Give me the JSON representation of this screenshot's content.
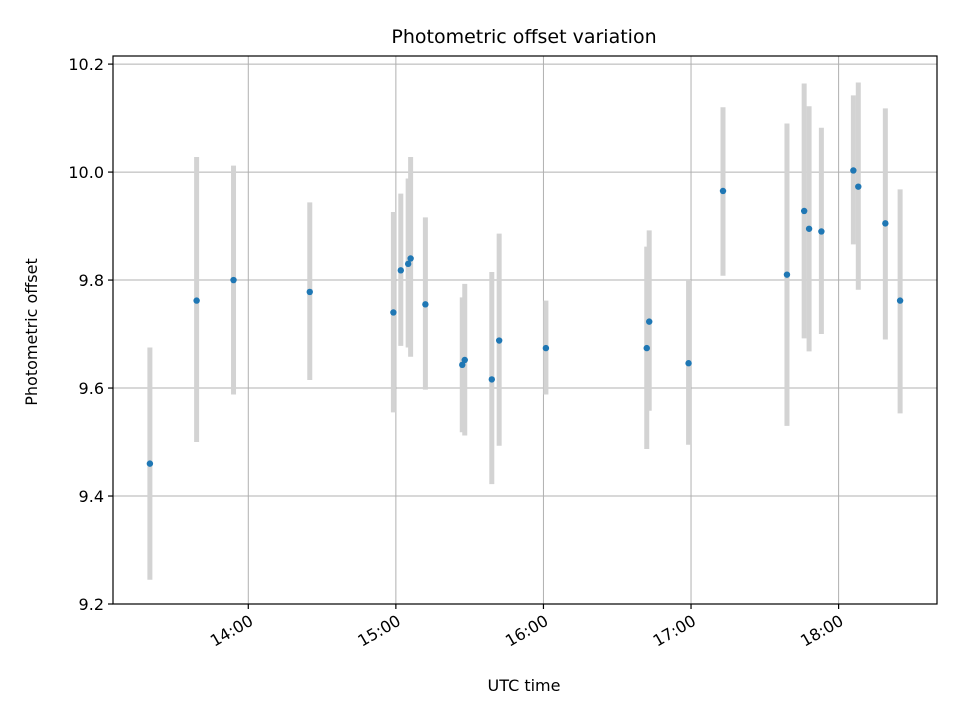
{
  "chart_data": {
    "type": "scatter",
    "title": "Photometric offset variation",
    "xlabel": "UTC time",
    "ylabel": "Photometric offset",
    "xlim": [
      "13:05",
      "18:40"
    ],
    "ylim": [
      9.2,
      10.215
    ],
    "x_ticks": [
      "14:00",
      "15:00",
      "16:00",
      "17:00",
      "18:00"
    ],
    "y_ticks": [
      9.2,
      9.4,
      9.6,
      9.8,
      10.0,
      10.2
    ],
    "grid": true,
    "colors": {
      "point": "#1f77b4",
      "errorbar": "#d3d3d3",
      "grid": "#b0b0b0"
    },
    "points": [
      {
        "x": "13:20",
        "y": 9.46,
        "lo": 9.245,
        "hi": 9.675
      },
      {
        "x": "13:39",
        "y": 9.762,
        "lo": 9.5,
        "hi": 10.028
      },
      {
        "x": "13:54",
        "y": 9.8,
        "lo": 9.588,
        "hi": 10.012
      },
      {
        "x": "14:25",
        "y": 9.778,
        "lo": 9.615,
        "hi": 9.944
      },
      {
        "x": "14:59",
        "y": 9.74,
        "lo": 9.555,
        "hi": 9.926
      },
      {
        "x": "15:02",
        "y": 9.818,
        "lo": 9.678,
        "hi": 9.96
      },
      {
        "x": "15:05",
        "y": 9.83,
        "lo": 9.675,
        "hi": 9.988
      },
      {
        "x": "15:06",
        "y": 9.84,
        "lo": 9.658,
        "hi": 10.028
      },
      {
        "x": "15:12",
        "y": 9.755,
        "lo": 9.597,
        "hi": 9.916
      },
      {
        "x": "15:27",
        "y": 9.643,
        "lo": 9.518,
        "hi": 9.768
      },
      {
        "x": "15:28",
        "y": 9.652,
        "lo": 9.512,
        "hi": 9.793
      },
      {
        "x": "15:39",
        "y": 9.616,
        "lo": 9.422,
        "hi": 9.815
      },
      {
        "x": "15:42",
        "y": 9.688,
        "lo": 9.493,
        "hi": 9.886
      },
      {
        "x": "16:01",
        "y": 9.674,
        "lo": 9.588,
        "hi": 9.762
      },
      {
        "x": "16:42",
        "y": 9.674,
        "lo": 9.487,
        "hi": 9.862
      },
      {
        "x": "16:43",
        "y": 9.723,
        "lo": 9.558,
        "hi": 9.892
      },
      {
        "x": "16:59",
        "y": 9.646,
        "lo": 9.495,
        "hi": 9.8
      },
      {
        "x": "17:13",
        "y": 9.965,
        "lo": 9.808,
        "hi": 10.12
      },
      {
        "x": "17:39",
        "y": 9.81,
        "lo": 9.53,
        "hi": 10.09
      },
      {
        "x": "17:46",
        "y": 9.928,
        "lo": 9.692,
        "hi": 10.164
      },
      {
        "x": "17:48",
        "y": 9.895,
        "lo": 9.668,
        "hi": 10.122
      },
      {
        "x": "17:53",
        "y": 9.89,
        "lo": 9.7,
        "hi": 10.082
      },
      {
        "x": "18:06",
        "y": 10.003,
        "lo": 9.866,
        "hi": 10.142
      },
      {
        "x": "18:08",
        "y": 9.973,
        "lo": 9.782,
        "hi": 10.166
      },
      {
        "x": "18:19",
        "y": 9.905,
        "lo": 9.69,
        "hi": 10.118
      },
      {
        "x": "18:25",
        "y": 9.762,
        "lo": 9.553,
        "hi": 9.968
      }
    ]
  }
}
